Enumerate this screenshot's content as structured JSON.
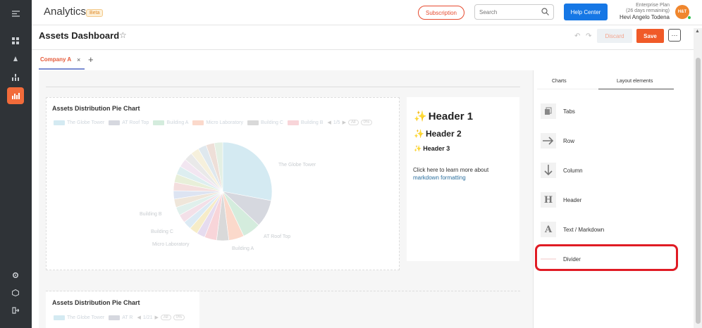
{
  "header": {
    "app_title": "Analytics",
    "beta_badge": "Beta",
    "subscription_label": "Subscription",
    "search_placeholder": "Search",
    "help_label": "Help Center",
    "plan_line1": "Enterprise Plan",
    "plan_line2": "(26 days remaining)",
    "user_name": "Hevi Angelo Todena",
    "avatar_initials": "H&T"
  },
  "dashboard": {
    "title": "Assets Dashboard",
    "discard_label": "Discard",
    "save_label": "Save",
    "more_label": "···",
    "tab_label": "Company A",
    "tab_close": "×",
    "tab_add": "+"
  },
  "pie_card": {
    "title": "Assets Distribution Pie Chart",
    "pager": "1/5",
    "pill_a": "All",
    "pill_b": "0%"
  },
  "chart_data": {
    "type": "pie",
    "title": "Assets Distribution Pie Chart",
    "legend": [
      "The Globe Tower",
      "AT Roof Top",
      "Building A",
      "Micro Laboratory",
      "Building C",
      "Building B"
    ],
    "colors": [
      "#d4eaf2",
      "#d6d8df",
      "#d4ecdd",
      "#fbd9cb",
      "#d9d9d9",
      "#f8d5d9"
    ],
    "labeled_slices": [
      "The Globe Tower",
      "AT Roof Top",
      "Building A",
      "Micro Laboratory",
      "Building C",
      "Building B"
    ]
  },
  "markdown_card": {
    "h1": "Header 1",
    "h2": "Header 2",
    "h3": "Header 3",
    "text": "Click here to learn more about",
    "link": "markdown formatting"
  },
  "pie_card2": {
    "title": "Assets Distribution Pie Chart",
    "legend1": "The Globe Tower",
    "legend2": "AT R",
    "pager": "1/21",
    "pill_a": "All",
    "pill_b": "0%"
  },
  "right_panel": {
    "tab_charts": "Charts",
    "tab_layout": "Layout elements",
    "items": [
      {
        "label": "Tabs",
        "icon": "tabs-icon"
      },
      {
        "label": "Row",
        "icon": "arrow-right-icon"
      },
      {
        "label": "Column",
        "icon": "arrow-down-icon"
      },
      {
        "label": "Header",
        "icon": "header-icon"
      },
      {
        "label": "Text / Markdown",
        "icon": "text-icon"
      },
      {
        "label": "Divider",
        "icon": "divider-icon"
      }
    ]
  }
}
